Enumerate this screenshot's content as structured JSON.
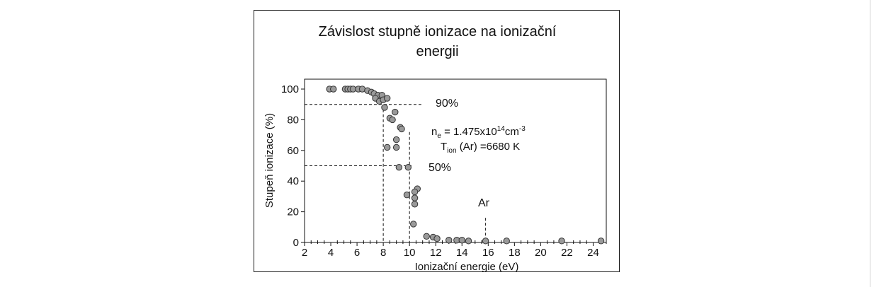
{
  "chart_data": {
    "type": "scatter",
    "title_lines": [
      "Závislost stupně ionizace na ionizační",
      "energii"
    ],
    "xlabel": "Ionizační energie (eV)",
    "ylabel": "Stupeň ionizace (%)",
    "xlim": [
      2,
      25
    ],
    "ylim": [
      0,
      105
    ],
    "x_ticks": [
      2,
      4,
      6,
      8,
      10,
      12,
      14,
      16,
      18,
      20,
      22,
      24
    ],
    "y_ticks": [
      0,
      20,
      40,
      60,
      80,
      100
    ],
    "grid": false,
    "marker_color": "#9a9a9a",
    "marker_edge": "#333333",
    "points": [
      {
        "x": 3.9,
        "y": 100
      },
      {
        "x": 4.2,
        "y": 100
      },
      {
        "x": 5.1,
        "y": 100
      },
      {
        "x": 5.3,
        "y": 100
      },
      {
        "x": 5.5,
        "y": 100
      },
      {
        "x": 5.7,
        "y": 100
      },
      {
        "x": 6.1,
        "y": 100
      },
      {
        "x": 6.4,
        "y": 100
      },
      {
        "x": 6.8,
        "y": 99
      },
      {
        "x": 7.1,
        "y": 98
      },
      {
        "x": 7.3,
        "y": 97
      },
      {
        "x": 7.6,
        "y": 96
      },
      {
        "x": 7.9,
        "y": 96
      },
      {
        "x": 7.4,
        "y": 94
      },
      {
        "x": 7.7,
        "y": 92
      },
      {
        "x": 8.0,
        "y": 93
      },
      {
        "x": 8.3,
        "y": 94
      },
      {
        "x": 8.1,
        "y": 88
      },
      {
        "x": 8.9,
        "y": 85
      },
      {
        "x": 8.5,
        "y": 81
      },
      {
        "x": 8.7,
        "y": 80
      },
      {
        "x": 9.3,
        "y": 75
      },
      {
        "x": 9.4,
        "y": 74
      },
      {
        "x": 9.0,
        "y": 67
      },
      {
        "x": 8.3,
        "y": 62
      },
      {
        "x": 9.0,
        "y": 62
      },
      {
        "x": 9.2,
        "y": 49
      },
      {
        "x": 9.9,
        "y": 49
      },
      {
        "x": 10.6,
        "y": 35
      },
      {
        "x": 10.4,
        "y": 33
      },
      {
        "x": 9.8,
        "y": 31
      },
      {
        "x": 10.4,
        "y": 29
      },
      {
        "x": 10.4,
        "y": 25
      },
      {
        "x": 10.3,
        "y": 12
      },
      {
        "x": 11.3,
        "y": 4
      },
      {
        "x": 11.8,
        "y": 3.5
      },
      {
        "x": 12.1,
        "y": 2.5
      },
      {
        "x": 13.0,
        "y": 1.5
      },
      {
        "x": 13.6,
        "y": 1.5
      },
      {
        "x": 14.0,
        "y": 1.5
      },
      {
        "x": 14.5,
        "y": 1
      },
      {
        "x": 15.8,
        "y": 1
      },
      {
        "x": 17.4,
        "y": 1
      },
      {
        "x": 21.6,
        "y": 1
      },
      {
        "x": 24.6,
        "y": 1
      }
    ],
    "reference_lines": {
      "h90": {
        "y": 90,
        "x_to": 10.9,
        "label": "90%"
      },
      "v90": {
        "x": 8.0
      },
      "h50": {
        "y": 50,
        "x_to": 10.2,
        "label": "50%"
      },
      "v50": {
        "x": 10.0,
        "y_to": 72
      },
      "ar_line": {
        "x": 15.8,
        "y_from": 1,
        "y_to": 16
      }
    },
    "annotations": {
      "ne": {
        "main": "n",
        "sub": "e",
        "mid": " = 1.475x10",
        "sup1": "14",
        "unit": "cm",
        "sup2": "-3"
      },
      "tion": {
        "main": "T",
        "sub": "ion",
        "rest": " (Ar) =6680 K"
      },
      "ar": "Ar"
    }
  }
}
